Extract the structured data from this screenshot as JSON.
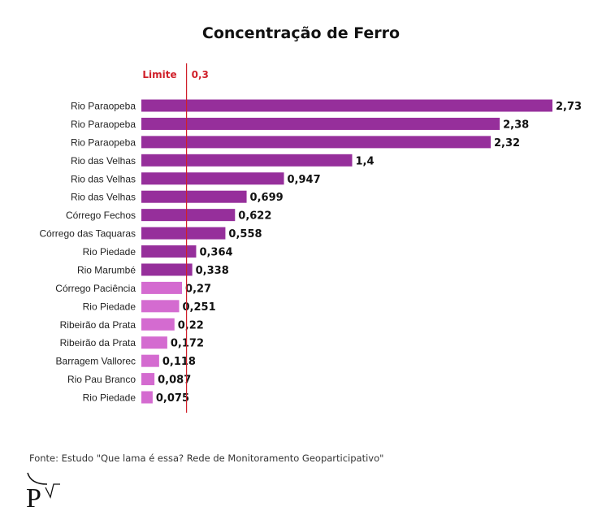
{
  "chart_data": {
    "type": "bar",
    "orientation": "horizontal",
    "title": "Concentração de Ferro",
    "categories": [
      "Rio Paraopeba",
      "Rio Paraopeba",
      "Rio Paraopeba",
      "Rio das Velhas",
      "Rio das Velhas",
      "Rio das Velhas",
      "Córrego Fechos",
      "Córrego das Taquaras",
      "Rio Piedade",
      "Rio Marumbé",
      "Córrego Paciência",
      "Rio Piedade",
      "Ribeirão da Prata",
      "Ribeirão da Prata",
      "Barragem Vallorec",
      "Rio Pau Branco",
      "Rio Piedade"
    ],
    "values": [
      2.73,
      2.38,
      2.32,
      1.4,
      0.947,
      0.699,
      0.622,
      0.558,
      0.364,
      0.338,
      0.27,
      0.251,
      0.22,
      0.172,
      0.118,
      0.087,
      0.075
    ],
    "value_labels": [
      "2,73",
      "2,38",
      "2,32",
      "1,4",
      "0,947",
      "0,699",
      "0,622",
      "0,558",
      "0,364",
      "0,338",
      "0,27",
      "0,251",
      "0,22",
      "0,172",
      "0,118",
      "0,087",
      "0,075"
    ],
    "xlim": [
      0,
      2.73
    ],
    "grid": false,
    "reference_line": {
      "label": "Limite",
      "value": 0.3,
      "value_label": "0,3",
      "color": "#d0202a"
    },
    "colors": {
      "above_limit": "#962f9b",
      "below_limit": "#d46bd0"
    }
  },
  "source": "Fonte: Estudo \"Que lama é essa? Rede de Monitoramento Geoparticipativo\"",
  "logo": {
    "text": "P"
  }
}
